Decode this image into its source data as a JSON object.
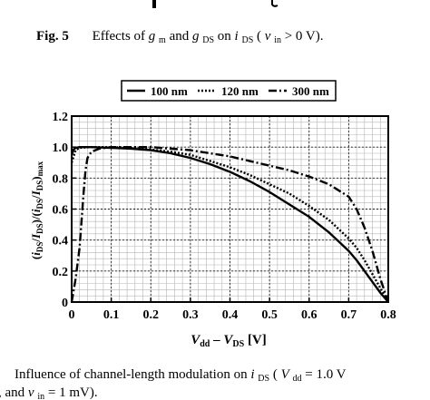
{
  "figure": {
    "top_caption": {
      "label": "Fig. 5",
      "text_before": "Effects of ",
      "sym1": "g",
      "sub1": "m",
      "text_mid": " and ",
      "sym2": "g",
      "sub2": "DS",
      "text_on": " on ",
      "sym3": "i",
      "sub3": "DS",
      "cond_open": " (",
      "cond_sym": "v",
      "cond_sub": "in",
      "cond_rest": " > 0 V)."
    },
    "bottom_caption": {
      "line1_text": "Influence of channel-length modulation on ",
      "line1_sym": "i",
      "line1_sub": "DS",
      "line1_open": " (",
      "line1_sym2": "V",
      "line1_sub2": "dd",
      "line1_rest": " = 1.0 V",
      "line2_pre": ", and ",
      "line2_sym": "v",
      "line2_sub": "in",
      "line2_rest": " = 1 mV)."
    }
  },
  "chart_data": {
    "type": "line",
    "xlim": [
      0,
      0.8
    ],
    "ylim": [
      0,
      1.2
    ],
    "x_ticks": [
      "0",
      "0.1",
      "0.2",
      "0.3",
      "0.4",
      "0.5",
      "0.6",
      "0.7",
      "0.8"
    ],
    "y_ticks": [
      "0",
      "0.2",
      "0.4",
      "0.6",
      "0.8",
      "1.0",
      "1.2"
    ],
    "xlabel": "V_dd – V_DS [V]",
    "ylabel": "(i_DS/I_DS)/(i_DS/I_DS)_max",
    "grid": true,
    "legend_position": "top-center",
    "series": [
      {
        "name": "100 nm",
        "style": "solid",
        "color": "#000000",
        "x": [
          0.0,
          0.005,
          0.01,
          0.02,
          0.05,
          0.1,
          0.15,
          0.2,
          0.25,
          0.3,
          0.35,
          0.4,
          0.45,
          0.5,
          0.55,
          0.6,
          0.65,
          0.7,
          0.72,
          0.74,
          0.76,
          0.78,
          0.8
        ],
        "y": [
          0.95,
          0.985,
          0.995,
          1.0,
          1.0,
          0.995,
          0.99,
          0.98,
          0.96,
          0.93,
          0.89,
          0.84,
          0.78,
          0.71,
          0.63,
          0.55,
          0.45,
          0.33,
          0.27,
          0.2,
          0.13,
          0.06,
          0.0
        ]
      },
      {
        "name": "120 nm",
        "style": "dotted",
        "color": "#000000",
        "x": [
          0.0,
          0.01,
          0.02,
          0.05,
          0.1,
          0.15,
          0.2,
          0.25,
          0.3,
          0.35,
          0.4,
          0.45,
          0.5,
          0.55,
          0.6,
          0.65,
          0.7,
          0.72,
          0.74,
          0.76,
          0.78,
          0.8
        ],
        "y": [
          0.9,
          0.98,
          0.995,
          1.0,
          1.0,
          0.995,
          0.985,
          0.97,
          0.95,
          0.91,
          0.87,
          0.82,
          0.76,
          0.7,
          0.62,
          0.53,
          0.41,
          0.35,
          0.27,
          0.18,
          0.09,
          0.0
        ]
      },
      {
        "name": "300 nm",
        "style": "dashdot",
        "color": "#000000",
        "x": [
          0.0,
          0.01,
          0.02,
          0.03,
          0.035,
          0.04,
          0.05,
          0.07,
          0.1,
          0.15,
          0.2,
          0.25,
          0.3,
          0.35,
          0.4,
          0.45,
          0.5,
          0.55,
          0.6,
          0.65,
          0.7,
          0.72,
          0.74,
          0.76,
          0.78,
          0.8
        ],
        "y": [
          0.0,
          0.15,
          0.35,
          0.7,
          0.85,
          0.93,
          0.97,
          0.99,
          1.0,
          1.0,
          1.0,
          0.99,
          0.98,
          0.96,
          0.94,
          0.91,
          0.88,
          0.85,
          0.81,
          0.76,
          0.68,
          0.6,
          0.48,
          0.33,
          0.15,
          0.0
        ]
      }
    ]
  }
}
